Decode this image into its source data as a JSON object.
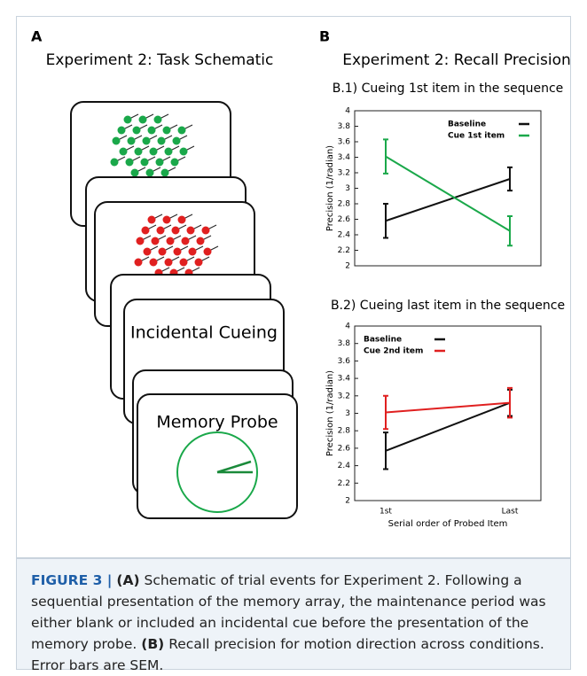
{
  "panel_a": {
    "letter": "A",
    "title": "Experiment 2: Task Schematic",
    "cue_text": "Incidental Cueing",
    "probe_text": "Memory Probe"
  },
  "panel_b": {
    "letter": "B",
    "title": "Experiment 2: Recall Precision"
  },
  "chart_data": [
    {
      "type": "line",
      "title": "B.1) Cueing 1st item in the sequence",
      "y_label": "Precision (1/radian)",
      "categories": [
        null,
        null
      ],
      "ylim": [
        2,
        4
      ],
      "yticks": [
        2,
        2.2,
        2.4,
        2.6,
        2.8,
        3,
        3.2,
        3.4,
        3.6,
        3.8,
        4
      ],
      "legend": "upper right",
      "series": [
        {
          "name": "Baseline",
          "color": "#111111",
          "values": [
            2.58,
            3.12
          ],
          "errors": [
            0.22,
            0.15
          ]
        },
        {
          "name": "Cue 1st item",
          "color": "#1aa84a",
          "values": [
            3.41,
            2.45
          ],
          "errors": [
            0.22,
            0.19
          ]
        }
      ]
    },
    {
      "type": "line",
      "title": "B.2) Cueing last item in the sequence",
      "y_label": "Precision (1/radian)",
      "x_label": "Serial order of Probed Item",
      "categories": [
        "1st",
        "Last"
      ],
      "ylim": [
        2,
        4
      ],
      "yticks": [
        2,
        2.2,
        2.4,
        2.6,
        2.8,
        3,
        3.2,
        3.4,
        3.6,
        3.8,
        4
      ],
      "legend": "upper left",
      "series": [
        {
          "name": "Baseline",
          "color": "#111111",
          "values": [
            2.57,
            3.12
          ],
          "errors": [
            0.21,
            0.15
          ]
        },
        {
          "name": "Cue 2nd item",
          "color": "#e02020",
          "values": [
            3.01,
            3.12
          ],
          "errors": [
            0.19,
            0.17
          ]
        }
      ]
    }
  ],
  "caption": {
    "label": "FIGURE 3 |",
    "a": "(A)",
    "text_a": " Schematic of trial events for Experiment 2. Following a sequential presentation of the memory array, the maintenance period was either blank or included an incidental cue before the presentation of the memory probe. ",
    "b": "(B)",
    "text_b": " Recall precision for motion direction across conditions. Error bars are SEM."
  }
}
